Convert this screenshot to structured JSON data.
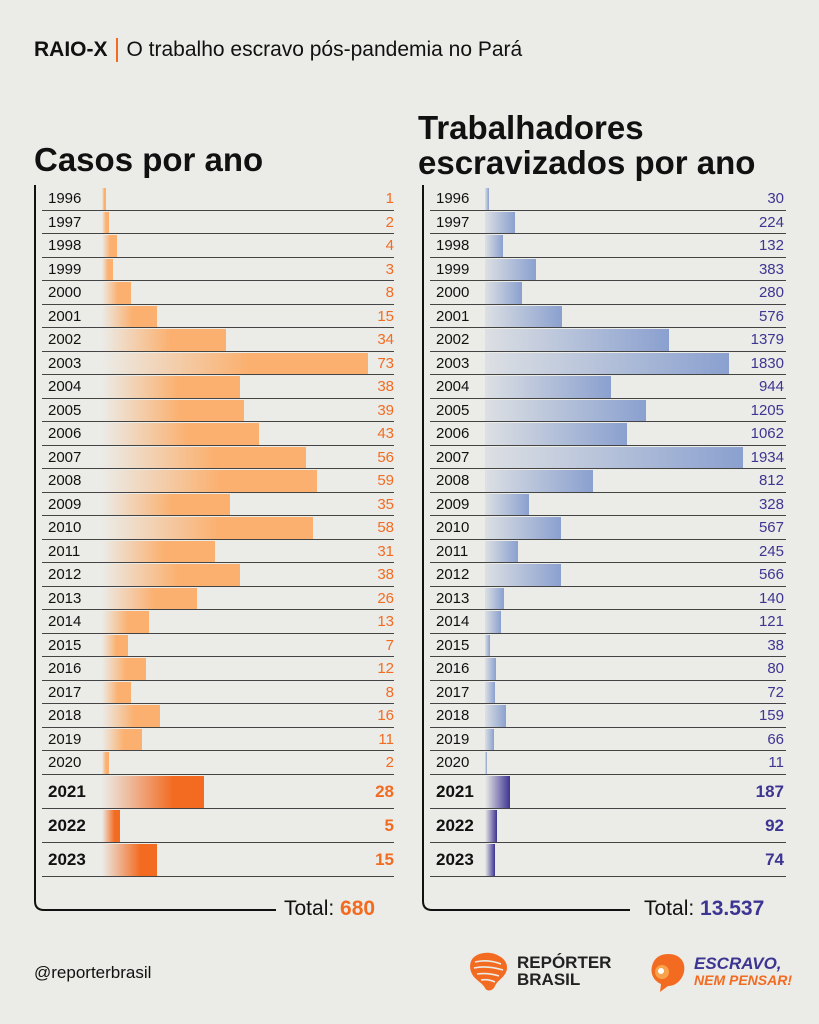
{
  "header": {
    "tag": "RAIO-X",
    "subtitle": "O trabalho escravo pós-pandemia no Pará"
  },
  "colors": {
    "orange": "#f26b21",
    "light_orange": "#fbb06f",
    "purple": "#3d3592",
    "blue": "#8aa0cf"
  },
  "chart_data": [
    {
      "type": "bar",
      "orientation": "horizontal",
      "title": "Casos por ano",
      "categories": [
        "1996",
        "1997",
        "1998",
        "1999",
        "2000",
        "2001",
        "2002",
        "2003",
        "2004",
        "2005",
        "2006",
        "2007",
        "2008",
        "2009",
        "2010",
        "2011",
        "2012",
        "2013",
        "2014",
        "2015",
        "2016",
        "2017",
        "2018",
        "2019",
        "2020",
        "2021",
        "2022",
        "2023"
      ],
      "values": [
        1,
        2,
        4,
        3,
        8,
        15,
        34,
        73,
        38,
        39,
        43,
        56,
        59,
        35,
        58,
        31,
        38,
        26,
        13,
        7,
        12,
        8,
        16,
        11,
        2,
        28,
        5,
        15
      ],
      "highlight_categories": [
        "2021",
        "2022",
        "2023"
      ],
      "total_label": "Total:",
      "total_value": "680",
      "value_color": "#f26b21"
    },
    {
      "type": "bar",
      "orientation": "horizontal",
      "title": "Trabalhadores escravizados por ano",
      "categories": [
        "1996",
        "1997",
        "1998",
        "1999",
        "2000",
        "2001",
        "2002",
        "2003",
        "2004",
        "2005",
        "2006",
        "2007",
        "2008",
        "2009",
        "2010",
        "2011",
        "2012",
        "2013",
        "2014",
        "2015",
        "2016",
        "2017",
        "2018",
        "2019",
        "2020",
        "2021",
        "2022",
        "2023"
      ],
      "values": [
        30,
        224,
        132,
        383,
        280,
        576,
        1379,
        1830,
        944,
        1205,
        1062,
        1934,
        812,
        328,
        567,
        245,
        566,
        140,
        121,
        38,
        80,
        72,
        159,
        66,
        11,
        187,
        92,
        74
      ],
      "highlight_categories": [
        "2021",
        "2022",
        "2023"
      ],
      "total_label": "Total:",
      "total_value": "13.537",
      "value_color": "#3d3592"
    }
  ],
  "footer": {
    "handle": "@reporterbrasil",
    "logo_left_line1": "REPÓRTER",
    "logo_left_line2": "BRASIL",
    "logo_right_line1": "ESCRAVO,",
    "logo_right_line2": "NEM PENSAR!"
  }
}
